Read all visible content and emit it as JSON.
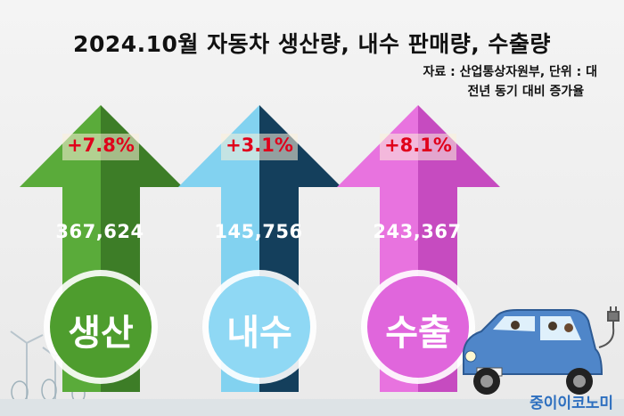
{
  "title": "2024.10월 자동차 생산량, 내수 판매량, 수출량",
  "source_line1": "자료 : 산업통상자원부, 단위 : 대",
  "source_line2": "전년 동기 대비 증가율",
  "items": [
    {
      "label": "생산",
      "value": "367,624",
      "change": "+7.8%",
      "color_light": "#5aab3a",
      "color_dark": "#3d7d27"
    },
    {
      "label": "내수",
      "value": "145,756",
      "change": "+3.1%",
      "color_light": "#82d2f0",
      "color_dark": "#143f5c"
    },
    {
      "label": "수출",
      "value": "243,367",
      "change": "+8.1%",
      "color_light": "#e873df",
      "color_dark": "#c64bc0"
    }
  ],
  "brand": "중이이코노미",
  "icons": [
    "wind-turbine-icon",
    "tree-icon",
    "electric-car-icon",
    "charging-plug-icon"
  ]
}
